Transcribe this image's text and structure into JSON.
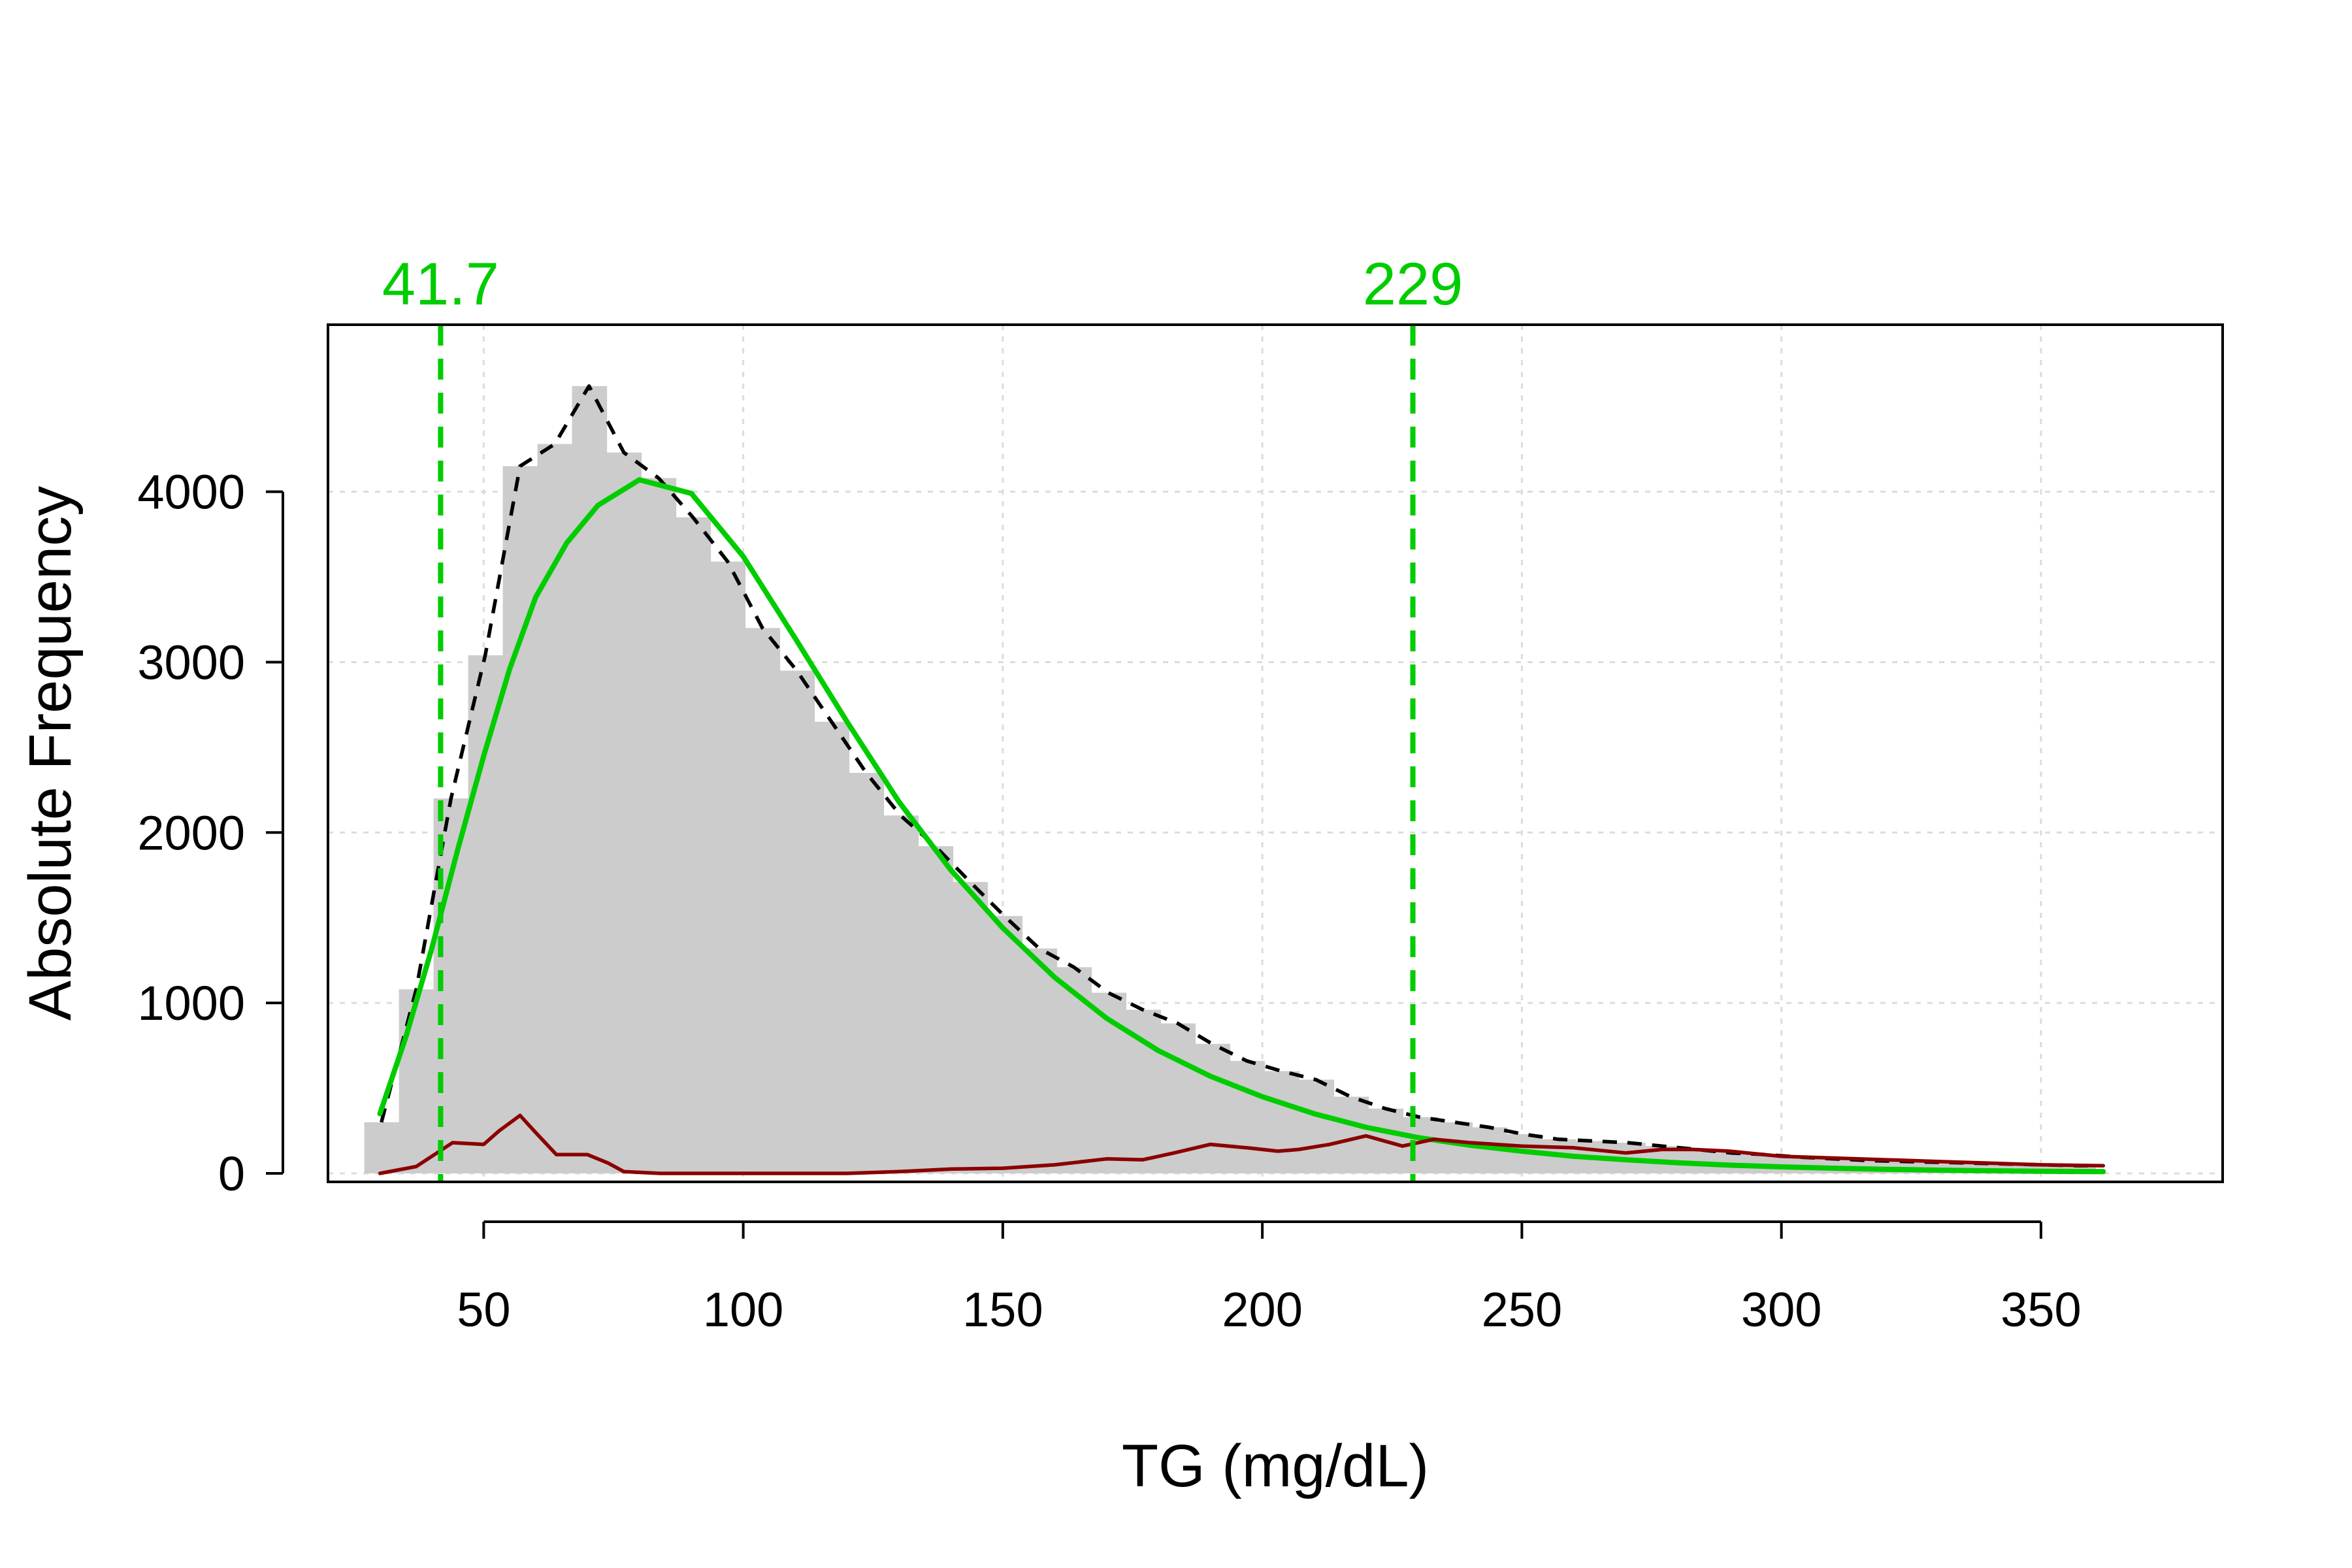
{
  "chart_data": {
    "type": "bar",
    "title": "",
    "xlabel": "TG (mg/dL)",
    "ylabel": "Absolute Frequency",
    "xlim": [
      20,
      385
    ],
    "ylim": [
      -50,
      4980
    ],
    "grid": true,
    "x_ticks": [
      50,
      100,
      150,
      200,
      250,
      300,
      350
    ],
    "y_ticks": [
      0,
      1000,
      2000,
      3000,
      4000
    ],
    "histogram": {
      "bin_width": 6.67,
      "bins_start": 27,
      "counts": [
        300,
        1080,
        2200,
        3040,
        4150,
        4280,
        4620,
        4230,
        4080,
        3850,
        3590,
        3200,
        2950,
        2650,
        2350,
        2100,
        1920,
        1710,
        1510,
        1320,
        1210,
        1060,
        960,
        880,
        760,
        660,
        600,
        550,
        450,
        380,
        330,
        300,
        270,
        230,
        200,
        190,
        180,
        160,
        140,
        120,
        110,
        95,
        85,
        75,
        70,
        65,
        60,
        55,
        50,
        45
      ]
    },
    "series": [
      {
        "name": "",
        "style": "dashed",
        "color": "#000000",
        "x": [
          30.3,
          37.0,
          43.7,
          50.3,
          57.0,
          63.7,
          70.3,
          77.0,
          83.7,
          90.3,
          97.0,
          103.7,
          110.3,
          117.0,
          123.7,
          130.3,
          137.0,
          143.7,
          150.3,
          157.0,
          163.7,
          170.3,
          177.0,
          183.7,
          190.3,
          197.0,
          203.7,
          210.3,
          217.0,
          223.7,
          230.3,
          237.0,
          243.7,
          250.3,
          257.0,
          263.7,
          270.3,
          277.0,
          283.7,
          290.3,
          297.0,
          303.7,
          310.3,
          317.0,
          323.7,
          330.3,
          337.0,
          343.7,
          350.3,
          357.0,
          361.0
        ],
        "y": [
          300,
          1080,
          2200,
          3040,
          4150,
          4280,
          4620,
          4230,
          4080,
          3850,
          3590,
          3200,
          2950,
          2650,
          2350,
          2100,
          1920,
          1710,
          1510,
          1320,
          1210,
          1060,
          960,
          880,
          760,
          660,
          600,
          550,
          450,
          380,
          330,
          300,
          270,
          230,
          200,
          190,
          180,
          160,
          140,
          120,
          110,
          95,
          85,
          75,
          70,
          65,
          60,
          55,
          50,
          45,
          45
        ]
      },
      {
        "name": "",
        "style": "solid",
        "color": "#00cc00",
        "x": [
          30,
          35,
          40,
          45,
          50,
          55,
          60,
          66,
          72,
          80,
          90,
          100,
          110,
          120,
          130,
          140,
          150,
          160,
          170,
          180,
          190,
          200,
          210,
          220,
          230,
          240,
          250,
          260,
          270,
          280,
          290,
          300,
          310,
          320,
          330,
          340,
          350,
          362
        ],
        "y": [
          350,
          800,
          1320,
          1900,
          2450,
          2960,
          3380,
          3700,
          3920,
          4070,
          3990,
          3620,
          3140,
          2650,
          2180,
          1780,
          1440,
          1150,
          910,
          720,
          570,
          450,
          350,
          270,
          210,
          165,
          130,
          100,
          80,
          62,
          48,
          38,
          30,
          24,
          19,
          15,
          12,
          10
        ]
      },
      {
        "name": "",
        "style": "solid",
        "color": "#8b0000",
        "x": [
          30,
          37,
          44,
          50,
          53,
          57,
          60,
          64,
          70,
          74,
          77,
          84,
          90,
          100,
          110,
          120,
          130,
          140,
          150,
          160,
          170,
          177,
          183,
          190,
          197,
          203,
          207,
          213,
          220,
          227,
          233,
          240,
          250,
          260,
          270,
          277,
          283,
          290,
          300,
          310,
          320,
          330,
          340,
          350,
          362
        ],
        "y": [
          0,
          40,
          180,
          170,
          250,
          340,
          240,
          110,
          110,
          60,
          10,
          0,
          0,
          0,
          0,
          0,
          10,
          25,
          30,
          50,
          85,
          80,
          120,
          170,
          150,
          130,
          140,
          170,
          220,
          160,
          200,
          180,
          160,
          150,
          120,
          140,
          140,
          130,
          100,
          90,
          80,
          70,
          60,
          50,
          45
        ]
      }
    ],
    "cutoffs": [
      {
        "value": 41.7,
        "label": "41.7",
        "color": "#00cc00"
      },
      {
        "value": 229,
        "label": "229",
        "color": "#00cc00"
      }
    ],
    "colors": {
      "bars": "#cccccc",
      "grid": "#dcdcdc",
      "cutoff": "#00cc00"
    }
  }
}
